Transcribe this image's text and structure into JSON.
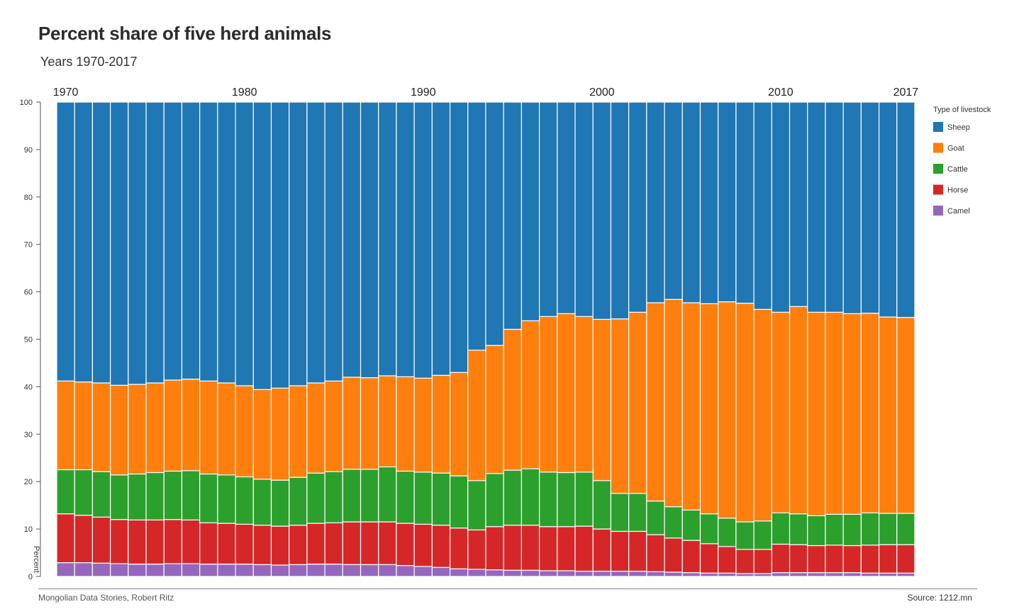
{
  "title": "Percent share of five herd animals",
  "subtitle": "Years 1970-2017",
  "footer": {
    "left": "Mongolian Data Stories, Robert Ritz",
    "right": "Source: 1212.mn"
  },
  "chart_data": {
    "type": "bar",
    "stacked": true,
    "ylabel": "Percent",
    "ylim": [
      0,
      100
    ],
    "yticks": [
      0,
      10,
      20,
      30,
      40,
      50,
      60,
      70,
      80,
      90,
      100
    ],
    "top_year_labels": [
      "1970",
      "1980",
      "1990",
      "2000",
      "2010",
      "2017"
    ],
    "grid": false,
    "legend": {
      "title": "Type of livestock",
      "position": "right"
    },
    "categories": [
      1970,
      1971,
      1972,
      1973,
      1974,
      1975,
      1976,
      1977,
      1978,
      1979,
      1980,
      1981,
      1982,
      1983,
      1984,
      1985,
      1986,
      1987,
      1988,
      1989,
      1990,
      1991,
      1992,
      1993,
      1994,
      1995,
      1996,
      1997,
      1998,
      1999,
      2000,
      2001,
      2002,
      2003,
      2004,
      2005,
      2006,
      2007,
      2008,
      2009,
      2010,
      2011,
      2012,
      2013,
      2014,
      2015,
      2016,
      2017
    ],
    "series": [
      {
        "name": "Camel",
        "color": "#9467bd",
        "values": [
          2.9,
          2.9,
          2.8,
          2.7,
          2.6,
          2.6,
          2.7,
          2.7,
          2.6,
          2.6,
          2.6,
          2.5,
          2.4,
          2.5,
          2.6,
          2.6,
          2.5,
          2.5,
          2.5,
          2.3,
          2.1,
          1.9,
          1.6,
          1.5,
          1.4,
          1.3,
          1.3,
          1.2,
          1.2,
          1.1,
          1.1,
          1.1,
          1.1,
          1.0,
          0.9,
          0.8,
          0.7,
          0.7,
          0.6,
          0.6,
          0.8,
          0.8,
          0.8,
          0.8,
          0.8,
          0.7,
          0.7,
          0.7
        ]
      },
      {
        "name": "Horse",
        "color": "#d62728",
        "values": [
          10.3,
          10.0,
          9.7,
          9.3,
          9.3,
          9.3,
          9.3,
          9.2,
          8.7,
          8.6,
          8.4,
          8.3,
          8.2,
          8.3,
          8.6,
          8.7,
          9.0,
          9.0,
          9.0,
          8.9,
          8.9,
          8.9,
          8.6,
          8.3,
          9.1,
          9.5,
          9.5,
          9.3,
          9.3,
          9.5,
          8.9,
          8.4,
          8.4,
          7.8,
          7.2,
          6.8,
          6.2,
          5.6,
          5.1,
          5.1,
          6.0,
          5.9,
          5.7,
          5.8,
          5.7,
          5.9,
          6.0,
          6.0
        ]
      },
      {
        "name": "Cattle",
        "color": "#2ca02c",
        "values": [
          9.3,
          9.6,
          9.6,
          9.4,
          9.7,
          10.0,
          10.2,
          10.4,
          10.3,
          10.2,
          10.0,
          9.7,
          9.7,
          10.1,
          10.6,
          10.8,
          11.1,
          11.1,
          11.6,
          11.0,
          11.0,
          11.0,
          11.0,
          10.4,
          11.2,
          11.6,
          11.9,
          11.5,
          11.4,
          11.4,
          10.2,
          8.0,
          8.0,
          7.1,
          6.6,
          6.4,
          6.3,
          6.0,
          5.8,
          6.0,
          6.6,
          6.5,
          6.3,
          6.5,
          6.6,
          6.8,
          6.6,
          6.6
        ]
      },
      {
        "name": "Goat",
        "color": "#ff7f0e",
        "values": [
          18.7,
          18.5,
          18.7,
          18.9,
          18.9,
          18.9,
          19.2,
          19.3,
          19.6,
          19.4,
          19.2,
          18.9,
          19.4,
          19.3,
          19.0,
          19.1,
          19.4,
          19.3,
          19.2,
          19.9,
          19.8,
          20.6,
          21.8,
          27.5,
          27.0,
          29.7,
          31.2,
          32.8,
          33.5,
          32.8,
          34.0,
          36.8,
          38.2,
          41.8,
          43.7,
          43.7,
          44.3,
          45.6,
          46.1,
          44.6,
          42.3,
          43.7,
          42.9,
          42.6,
          42.3,
          42.1,
          41.4,
          41.3
        ]
      },
      {
        "name": "Sheep",
        "color": "#1f77b4",
        "values": [
          58.8,
          59.0,
          59.2,
          59.7,
          59.5,
          59.2,
          58.6,
          58.4,
          58.8,
          59.2,
          59.8,
          60.6,
          60.3,
          59.8,
          59.2,
          58.8,
          58.0,
          58.1,
          57.7,
          57.9,
          58.2,
          57.6,
          57.0,
          52.3,
          51.3,
          47.9,
          46.1,
          45.2,
          44.6,
          45.2,
          45.8,
          45.7,
          44.3,
          42.3,
          41.6,
          42.3,
          42.5,
          42.1,
          42.4,
          43.7,
          44.3,
          43.1,
          44.3,
          44.3,
          44.6,
          44.5,
          45.3,
          45.4
        ]
      }
    ]
  }
}
